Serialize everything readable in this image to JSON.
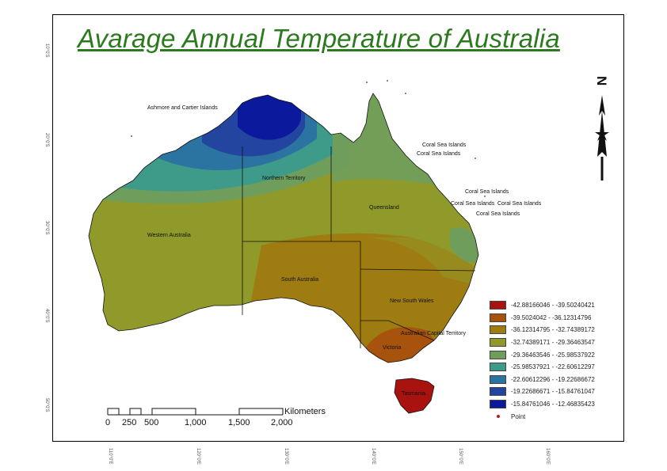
{
  "title": "Avarage Annual Temperature of Australia",
  "regions": {
    "wa": "Western Australia",
    "nt": "Northern Territory",
    "qld": "Queensland",
    "sa": "South Australia",
    "nsw": "New South Wales",
    "act": "Australian Capital Territory",
    "vic": "Victoria",
    "tas": "Tasmania"
  },
  "islands": {
    "ashmore": "Ashmore and Cartier Islands",
    "coral": "Coral Sea Islands"
  },
  "legend": {
    "classes": [
      {
        "label": "-42.88166046 - -39.50240421",
        "color": "#a8120f"
      },
      {
        "label": "-39.5024042 - -36.12314796",
        "color": "#a7520d"
      },
      {
        "label": "-36.12314795 - -32.74389172",
        "color": "#9e7c12"
      },
      {
        "label": "-32.74389171 - -29.36463547",
        "color": "#8f9a2a"
      },
      {
        "label": "-29.36463546 - -25.98537922",
        "color": "#6f9e5c"
      },
      {
        "label": "-25.98537921 - -22.60612297",
        "color": "#3e9b8a"
      },
      {
        "label": "-22.60612296 - -19.22686672",
        "color": "#2b73a0"
      },
      {
        "label": "-19.22686671 - -15.84761047",
        "color": "#23449f"
      },
      {
        "label": "-15.84761046 - -12.46835423",
        "color": "#0b1a9c"
      }
    ],
    "point_label": "Point",
    "point_color": "#b21f1f"
  },
  "scale": {
    "unit": "Kilometers",
    "ticks": [
      "0",
      "250",
      "500",
      "1,000",
      "1,500",
      "2,000"
    ]
  },
  "north_arrow": "N",
  "lat_labels": [
    "10°0'S",
    "20°0'S",
    "30°0'S",
    "40°0'S",
    "50°0'S"
  ],
  "lon_labels": [
    "110°0'E",
    "120°0'E",
    "130°0'E",
    "140°0'E",
    "150°0'E",
    "160°0'E"
  ]
}
